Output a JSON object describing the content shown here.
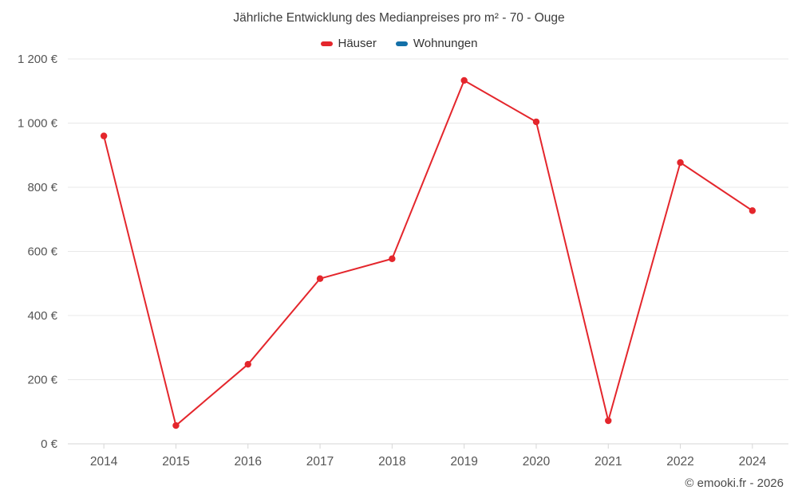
{
  "title": "Jährliche Entwicklung des Medianpreises pro m² - 70 - Ouge",
  "legend": [
    {
      "label": "Häuser",
      "color": "#e4262c"
    },
    {
      "label": "Wohnungen",
      "color": "#1470a8"
    }
  ],
  "footer": "© emooki.fr - 2026",
  "colors": {
    "gridline": "#e8e8e8",
    "axis_line": "#d6d6d6",
    "axis_label": "#555555"
  },
  "chart_data": {
    "type": "line",
    "categories": [
      "2014",
      "2015",
      "2016",
      "2017",
      "2018",
      "2019",
      "2020",
      "2021",
      "2022",
      "2024"
    ],
    "series": [
      {
        "name": "Häuser",
        "color": "#e4262c",
        "values": [
          960,
          57,
          248,
          515,
          577,
          1133,
          1004,
          72,
          877,
          727
        ]
      },
      {
        "name": "Wohnungen",
        "color": "#1470a8",
        "values": []
      }
    ],
    "title": "Jährliche Entwicklung des Medianpreises pro m² - 70 - Ouge",
    "xlabel": "",
    "ylabel": "",
    "ylim": [
      0,
      1200
    ],
    "ytick_step": 200,
    "ytick_suffix": " €",
    "grid": true,
    "legend_position": "top"
  }
}
